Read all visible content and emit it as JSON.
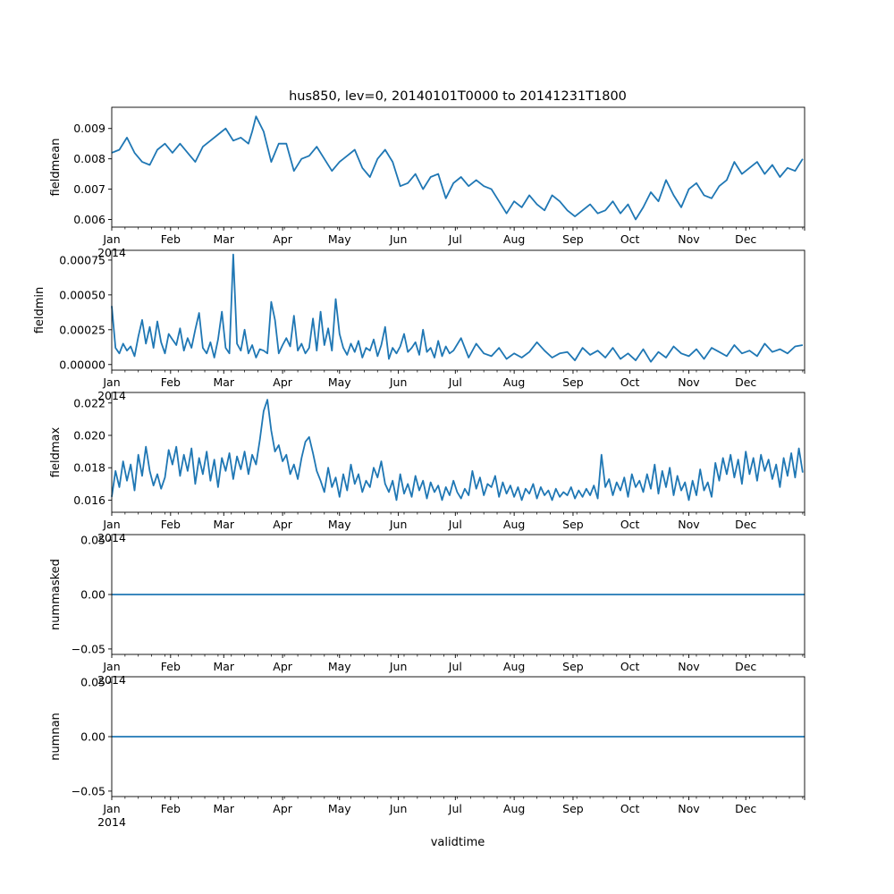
{
  "figure": {
    "title": "hus850, lev=0, 20140101T0000 to 20141231T1800",
    "xlabel": "validtime",
    "year_label": "2014"
  },
  "chart_data": [
    {
      "type": "line",
      "ylabel": "fieldmean",
      "ylim": [
        0.00575,
        0.0097
      ],
      "yticks": [
        0.006,
        0.007,
        0.008,
        0.009
      ],
      "ytick_labels": [
        "0.006",
        "0.007",
        "0.008",
        "0.009"
      ],
      "x_unit": "day of year 2014",
      "xlim": [
        0,
        365
      ],
      "months": [
        "Jan",
        "Feb",
        "Mar",
        "Apr",
        "May",
        "Jun",
        "Jul",
        "Aug",
        "Sep",
        "Oct",
        "Nov",
        "Dec"
      ],
      "series_color": "#1f77b4",
      "x": [
        0,
        4,
        8,
        12,
        16,
        20,
        24,
        28,
        32,
        36,
        40,
        44,
        48,
        52,
        56,
        60,
        64,
        68,
        72,
        74,
        76,
        80,
        84,
        88,
        92,
        96,
        100,
        104,
        108,
        112,
        116,
        120,
        124,
        128,
        132,
        136,
        140,
        144,
        148,
        152,
        156,
        160,
        164,
        168,
        172,
        176,
        180,
        184,
        188,
        192,
        196,
        200,
        204,
        208,
        212,
        216,
        220,
        224,
        228,
        232,
        236,
        240,
        244,
        248,
        252,
        256,
        260,
        264,
        268,
        272,
        276,
        280,
        284,
        288,
        292,
        296,
        300,
        304,
        308,
        312,
        316,
        320,
        324,
        328,
        332,
        336,
        340,
        344,
        348,
        352,
        356,
        360,
        364
      ],
      "values": [
        0.0082,
        0.0083,
        0.0087,
        0.0082,
        0.0079,
        0.0078,
        0.0083,
        0.0085,
        0.0082,
        0.0085,
        0.0082,
        0.0079,
        0.0084,
        0.0086,
        0.0088,
        0.009,
        0.0086,
        0.0087,
        0.0085,
        0.0089,
        0.0094,
        0.0089,
        0.0079,
        0.0085,
        0.0085,
        0.0076,
        0.008,
        0.0081,
        0.0084,
        0.008,
        0.0076,
        0.0079,
        0.0081,
        0.0083,
        0.0077,
        0.0074,
        0.008,
        0.0083,
        0.0079,
        0.0071,
        0.0072,
        0.0075,
        0.007,
        0.0074,
        0.0075,
        0.0067,
        0.0072,
        0.0074,
        0.0071,
        0.0073,
        0.0071,
        0.007,
        0.0066,
        0.0062,
        0.0066,
        0.0064,
        0.0068,
        0.0065,
        0.0063,
        0.0068,
        0.0066,
        0.0063,
        0.0061,
        0.0063,
        0.0065,
        0.0062,
        0.0063,
        0.0066,
        0.0062,
        0.0065,
        0.006,
        0.0064,
        0.0069,
        0.0066,
        0.0073,
        0.0068,
        0.0064,
        0.007,
        0.0072,
        0.0068,
        0.0067,
        0.0071,
        0.0073,
        0.0079,
        0.0075,
        0.0077,
        0.0079,
        0.0075,
        0.0078,
        0.0074,
        0.0077,
        0.0076,
        0.008
      ]
    },
    {
      "type": "line",
      "ylabel": "fieldmin",
      "ylim": [
        -4e-05,
        0.00082
      ],
      "yticks": [
        0.0,
        0.00025,
        0.0005,
        0.00075
      ],
      "ytick_labels": [
        "0.00000",
        "0.00025",
        "0.00050",
        "0.00075"
      ],
      "x_unit": "day of year 2014",
      "xlim": [
        0,
        365
      ],
      "months": [
        "Jan",
        "Feb",
        "Mar",
        "Apr",
        "May",
        "Jun",
        "Jul",
        "Aug",
        "Sep",
        "Oct",
        "Nov",
        "Dec"
      ],
      "series_color": "#1f77b4",
      "x": [
        0,
        2,
        4,
        6,
        8,
        10,
        12,
        14,
        16,
        18,
        20,
        22,
        24,
        26,
        28,
        30,
        32,
        34,
        36,
        38,
        40,
        42,
        44,
        46,
        48,
        50,
        52,
        54,
        56,
        58,
        60,
        62,
        64,
        66,
        68,
        70,
        72,
        74,
        76,
        78,
        80,
        82,
        84,
        86,
        88,
        90,
        92,
        94,
        96,
        98,
        100,
        102,
        104,
        106,
        108,
        110,
        112,
        114,
        116,
        118,
        120,
        122,
        124,
        126,
        128,
        130,
        132,
        134,
        136,
        138,
        140,
        142,
        144,
        146,
        148,
        150,
        152,
        154,
        156,
        158,
        160,
        162,
        164,
        166,
        168,
        170,
        172,
        174,
        176,
        178,
        180,
        184,
        188,
        192,
        196,
        200,
        204,
        208,
        212,
        216,
        220,
        224,
        228,
        232,
        236,
        240,
        244,
        248,
        252,
        256,
        260,
        264,
        268,
        272,
        276,
        280,
        284,
        288,
        292,
        296,
        300,
        304,
        308,
        312,
        316,
        320,
        324,
        328,
        332,
        336,
        340,
        344,
        348,
        352,
        356,
        360,
        364
      ],
      "values": [
        0.00042,
        0.00012,
        8e-05,
        0.00015,
        0.0001,
        0.00013,
        6e-05,
        0.0002,
        0.00032,
        0.00015,
        0.00027,
        0.00012,
        0.00031,
        0.00016,
        8e-05,
        0.00022,
        0.00018,
        0.00014,
        0.00026,
        0.0001,
        0.00019,
        0.00012,
        0.00025,
        0.00037,
        0.00012,
        8e-05,
        0.00016,
        5e-05,
        0.00018,
        0.00038,
        0.00012,
        8e-05,
        0.00079,
        0.00015,
        0.0001,
        0.00025,
        8e-05,
        0.00014,
        5e-05,
        0.00011,
        0.0001,
        8e-05,
        0.00045,
        0.00032,
        8e-05,
        0.00014,
        0.00019,
        0.00013,
        0.00035,
        0.0001,
        0.00015,
        8e-05,
        0.00012,
        0.00033,
        0.0001,
        0.00038,
        0.00014,
        0.00026,
        0.0001,
        0.00047,
        0.00022,
        0.00012,
        7e-05,
        0.00015,
        9e-05,
        0.00017,
        5e-05,
        0.00012,
        0.0001,
        0.00018,
        6e-05,
        0.00014,
        0.00027,
        4e-05,
        0.00012,
        8e-05,
        0.00013,
        0.00022,
        9e-05,
        0.00012,
        0.00016,
        7e-05,
        0.00025,
        9e-05,
        0.00012,
        5e-05,
        0.00017,
        6e-05,
        0.00013,
        8e-05,
        0.0001,
        0.00019,
        5e-05,
        0.00015,
        8e-05,
        6e-05,
        0.00012,
        4e-05,
        8e-05,
        5e-05,
        9e-05,
        0.00016,
        0.0001,
        5e-05,
        8e-05,
        9e-05,
        3e-05,
        0.00012,
        7e-05,
        0.0001,
        5e-05,
        0.00012,
        4e-05,
        8e-05,
        3e-05,
        0.00011,
        2e-05,
        9e-05,
        5e-05,
        0.00013,
        8e-05,
        6e-05,
        0.00011,
        4e-05,
        0.00012,
        9e-05,
        6e-05,
        0.00014,
        8e-05,
        0.0001,
        6e-05,
        0.00015,
        9e-05,
        0.00011,
        8e-05,
        0.00013,
        0.00014
      ]
    },
    {
      "type": "line",
      "ylabel": "fieldmax",
      "ylim": [
        0.01525,
        0.02265
      ],
      "yticks": [
        0.016,
        0.018,
        0.02,
        0.022
      ],
      "ytick_labels": [
        "0.016",
        "0.018",
        "0.020",
        "0.022"
      ],
      "x_unit": "day of year 2014",
      "xlim": [
        0,
        365
      ],
      "months": [
        "Jan",
        "Feb",
        "Mar",
        "Apr",
        "May",
        "Jun",
        "Jul",
        "Aug",
        "Sep",
        "Oct",
        "Nov",
        "Dec"
      ],
      "series_color": "#1f77b4",
      "x": [
        0,
        2,
        4,
        6,
        8,
        10,
        12,
        14,
        16,
        18,
        20,
        22,
        24,
        26,
        28,
        30,
        32,
        34,
        36,
        38,
        40,
        42,
        44,
        46,
        48,
        50,
        52,
        54,
        56,
        58,
        60,
        62,
        64,
        66,
        68,
        70,
        72,
        74,
        76,
        78,
        80,
        82,
        84,
        86,
        88,
        90,
        92,
        94,
        96,
        98,
        100,
        102,
        104,
        106,
        108,
        110,
        112,
        114,
        116,
        118,
        120,
        122,
        124,
        126,
        128,
        130,
        132,
        134,
        136,
        138,
        140,
        142,
        144,
        146,
        148,
        150,
        152,
        154,
        156,
        158,
        160,
        162,
        164,
        166,
        168,
        170,
        172,
        174,
        176,
        178,
        180,
        182,
        184,
        186,
        188,
        190,
        192,
        194,
        196,
        198,
        200,
        202,
        204,
        206,
        208,
        210,
        212,
        214,
        216,
        218,
        220,
        222,
        224,
        226,
        228,
        230,
        232,
        234,
        236,
        238,
        240,
        242,
        244,
        246,
        248,
        250,
        252,
        254,
        256,
        258,
        260,
        262,
        264,
        266,
        268,
        270,
        272,
        274,
        276,
        278,
        280,
        282,
        284,
        286,
        288,
        290,
        292,
        294,
        296,
        298,
        300,
        302,
        304,
        306,
        308,
        310,
        312,
        314,
        316,
        318,
        320,
        322,
        324,
        326,
        328,
        330,
        332,
        334,
        336,
        338,
        340,
        342,
        344,
        346,
        348,
        350,
        352,
        354,
        356,
        358,
        360,
        362,
        364
      ],
      "values": [
        0.0162,
        0.0178,
        0.0168,
        0.0184,
        0.0172,
        0.0182,
        0.0166,
        0.0188,
        0.0175,
        0.0193,
        0.0178,
        0.0169,
        0.0176,
        0.0167,
        0.0174,
        0.0191,
        0.0182,
        0.0193,
        0.0175,
        0.0188,
        0.0178,
        0.0192,
        0.017,
        0.0186,
        0.0176,
        0.019,
        0.0172,
        0.0185,
        0.0168,
        0.0186,
        0.0178,
        0.0189,
        0.0173,
        0.0187,
        0.0179,
        0.019,
        0.0176,
        0.0188,
        0.0182,
        0.0197,
        0.0215,
        0.0222,
        0.0203,
        0.019,
        0.0194,
        0.0184,
        0.0188,
        0.0176,
        0.0182,
        0.0173,
        0.0186,
        0.0196,
        0.0199,
        0.0189,
        0.0178,
        0.0172,
        0.0165,
        0.018,
        0.0168,
        0.0174,
        0.0162,
        0.0176,
        0.0166,
        0.0182,
        0.017,
        0.0176,
        0.0165,
        0.0172,
        0.0168,
        0.018,
        0.0174,
        0.0184,
        0.017,
        0.0165,
        0.0172,
        0.016,
        0.0176,
        0.0164,
        0.017,
        0.0162,
        0.0175,
        0.0166,
        0.0172,
        0.0161,
        0.0171,
        0.0165,
        0.0169,
        0.016,
        0.0168,
        0.0163,
        0.0172,
        0.0165,
        0.0161,
        0.0167,
        0.0163,
        0.0178,
        0.0167,
        0.0174,
        0.0163,
        0.017,
        0.0168,
        0.0175,
        0.0162,
        0.0171,
        0.0164,
        0.0169,
        0.0162,
        0.0168,
        0.016,
        0.0167,
        0.0164,
        0.017,
        0.0161,
        0.0168,
        0.0163,
        0.0166,
        0.016,
        0.0167,
        0.0162,
        0.0165,
        0.0163,
        0.0168,
        0.0161,
        0.0166,
        0.0162,
        0.0167,
        0.0163,
        0.0169,
        0.0161,
        0.0188,
        0.0168,
        0.0173,
        0.0163,
        0.0171,
        0.0166,
        0.0174,
        0.0162,
        0.0176,
        0.0168,
        0.0172,
        0.0165,
        0.0176,
        0.0167,
        0.0182,
        0.0164,
        0.0178,
        0.0168,
        0.018,
        0.0163,
        0.0175,
        0.0166,
        0.0171,
        0.016,
        0.0172,
        0.0163,
        0.0179,
        0.0166,
        0.0171,
        0.0162,
        0.0183,
        0.0172,
        0.0186,
        0.0176,
        0.0188,
        0.0174,
        0.0185,
        0.017,
        0.019,
        0.0176,
        0.0186,
        0.0172,
        0.0188,
        0.0178,
        0.0185,
        0.0173,
        0.0182,
        0.0168,
        0.0186,
        0.0175,
        0.0189,
        0.0174,
        0.0192,
        0.0177
      ]
    },
    {
      "type": "line",
      "ylabel": "nummasked",
      "ylim": [
        -0.055,
        0.055
      ],
      "yticks": [
        -0.05,
        0.0,
        0.05
      ],
      "ytick_labels": [
        "−0.05",
        "0.00",
        "0.05"
      ],
      "x_unit": "day of year 2014",
      "xlim": [
        0,
        365
      ],
      "months": [
        "Jan",
        "Feb",
        "Mar",
        "Apr",
        "May",
        "Jun",
        "Jul",
        "Aug",
        "Sep",
        "Oct",
        "Nov",
        "Dec"
      ],
      "series_color": "#1f77b4",
      "x": [
        0,
        365
      ],
      "values": [
        0,
        0
      ]
    },
    {
      "type": "line",
      "ylabel": "numnan",
      "ylim": [
        -0.055,
        0.055
      ],
      "yticks": [
        -0.05,
        0.0,
        0.05
      ],
      "ytick_labels": [
        "−0.05",
        "0.00",
        "0.05"
      ],
      "x_unit": "day of year 2014",
      "xlim": [
        0,
        365
      ],
      "months": [
        "Jan",
        "Feb",
        "Mar",
        "Apr",
        "May",
        "Jun",
        "Jul",
        "Aug",
        "Sep",
        "Oct",
        "Nov",
        "Dec"
      ],
      "series_color": "#1f77b4",
      "x": [
        0,
        365
      ],
      "values": [
        0,
        0
      ]
    }
  ]
}
